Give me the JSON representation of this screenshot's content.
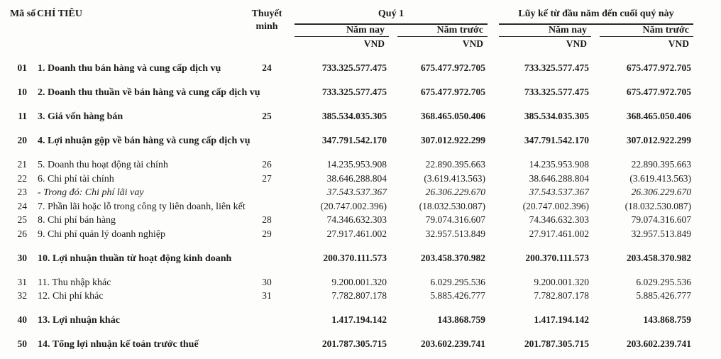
{
  "header": {
    "code_title": "Mã số",
    "item_title": "CHỈ TIÊU",
    "note_title_line1": "Thuyết",
    "note_title_line2": "minh",
    "group_q1": "Quý 1",
    "group_ytd": "Lũy kế từ đầu năm đến cuối quý này",
    "col_current": "Năm nay",
    "col_prior": "Năm trước",
    "currency_unit": "VND"
  },
  "rows": [
    {
      "code": "01",
      "label": "1. Doanh thu bán hàng và cung cấp dịch vụ",
      "note": "24",
      "q1_current": "733.325.577.475",
      "q1_prior": "675.477.972.705",
      "ytd_current": "733.325.577.475",
      "ytd_prior": "675.477.972.705",
      "emphasis": "bold"
    },
    {
      "code": "10",
      "label": "2. Doanh thu thuần về bán hàng và cung cấp dịch vụ",
      "note": "",
      "q1_current": "733.325.577.475",
      "q1_prior": "675.477.972.705",
      "ytd_current": "733.325.577.475",
      "ytd_prior": "675.477.972.705",
      "emphasis": "bold"
    },
    {
      "code": "11",
      "label": "3. Giá vốn hàng bán",
      "note": "25",
      "q1_current": "385.534.035.305",
      "q1_prior": "368.465.050.406",
      "ytd_current": "385.534.035.305",
      "ytd_prior": "368.465.050.406",
      "emphasis": "bold"
    },
    {
      "code": "20",
      "label": "4. Lợi nhuận gộp về bán hàng và cung cấp dịch vụ",
      "note": "",
      "q1_current": "347.791.542.170",
      "q1_prior": "307.012.922.299",
      "ytd_current": "347.791.542.170",
      "ytd_prior": "307.012.922.299",
      "emphasis": "bold"
    },
    {
      "code": "21",
      "label": "5. Doanh thu hoạt động tài chính",
      "note": "26",
      "q1_current": "14.235.953.908",
      "q1_prior": "22.890.395.663",
      "ytd_current": "14.235.953.908",
      "ytd_prior": "22.890.395.663",
      "emphasis": "normal"
    },
    {
      "code": "22",
      "label": "6. Chi phí tài chính",
      "note": "27",
      "q1_current": "38.646.288.804",
      "q1_prior": "(3.619.413.563)",
      "ytd_current": "38.646.288.804",
      "ytd_prior": "(3.619.413.563)",
      "emphasis": "normal"
    },
    {
      "code": "23",
      "label": "- Trong đó: Chi phí lãi vay",
      "note": "",
      "q1_current": "37.543.537.367",
      "q1_prior": "26.306.229.670",
      "ytd_current": "37.543.537.367",
      "ytd_prior": "26.306.229.670",
      "emphasis": "italic"
    },
    {
      "code": "24",
      "label": "7. Phần lãi hoặc lỗ trong công ty liên doanh, liên kết",
      "note": "",
      "q1_current": "(20.747.002.396)",
      "q1_prior": "(18.032.530.087)",
      "ytd_current": "(20.747.002.396)",
      "ytd_prior": "(18.032.530.087)",
      "emphasis": "normal"
    },
    {
      "code": "25",
      "label": "8. Chi phí bán hàng",
      "note": "28",
      "q1_current": "74.346.632.303",
      "q1_prior": "79.074.316.607",
      "ytd_current": "74.346.632.303",
      "ytd_prior": "79.074.316.607",
      "emphasis": "normal"
    },
    {
      "code": "26",
      "label": "9. Chi phí quản lý doanh nghiệp",
      "note": "29",
      "q1_current": "27.917.461.002",
      "q1_prior": "32.957.513.849",
      "ytd_current": "27.917.461.002",
      "ytd_prior": "32.957.513.849",
      "emphasis": "normal"
    },
    {
      "code": "30",
      "label": "10. Lợi nhuận thuần từ hoạt động kinh doanh",
      "note": "",
      "q1_current": "200.370.111.573",
      "q1_prior": "203.458.370.982",
      "ytd_current": "200.370.111.573",
      "ytd_prior": "203.458.370.982",
      "emphasis": "bold"
    },
    {
      "code": "31",
      "label": "11. Thu nhập khác",
      "note": "30",
      "q1_current": "9.200.001.320",
      "q1_prior": "6.029.295.536",
      "ytd_current": "9.200.001.320",
      "ytd_prior": "6.029.295.536",
      "emphasis": "normal"
    },
    {
      "code": "32",
      "label": "12. Chi phí khác",
      "note": "31",
      "q1_current": "7.782.807.178",
      "q1_prior": "5.885.426.777",
      "ytd_current": "7.782.807.178",
      "ytd_prior": "5.885.426.777",
      "emphasis": "normal"
    },
    {
      "code": "40",
      "label": "13. Lợi nhuận khác",
      "note": "",
      "q1_current": "1.417.194.142",
      "q1_prior": "143.868.759",
      "ytd_current": "1.417.194.142",
      "ytd_prior": "143.868.759",
      "emphasis": "bold"
    },
    {
      "code": "50",
      "label": "14. Tổng lợi nhuận kế toán trước thuế",
      "note": "",
      "q1_current": "201.787.305.715",
      "q1_prior": "203.602.239.741",
      "ytd_current": "201.787.305.715",
      "ytd_prior": "203.602.239.741",
      "emphasis": "bold"
    }
  ]
}
